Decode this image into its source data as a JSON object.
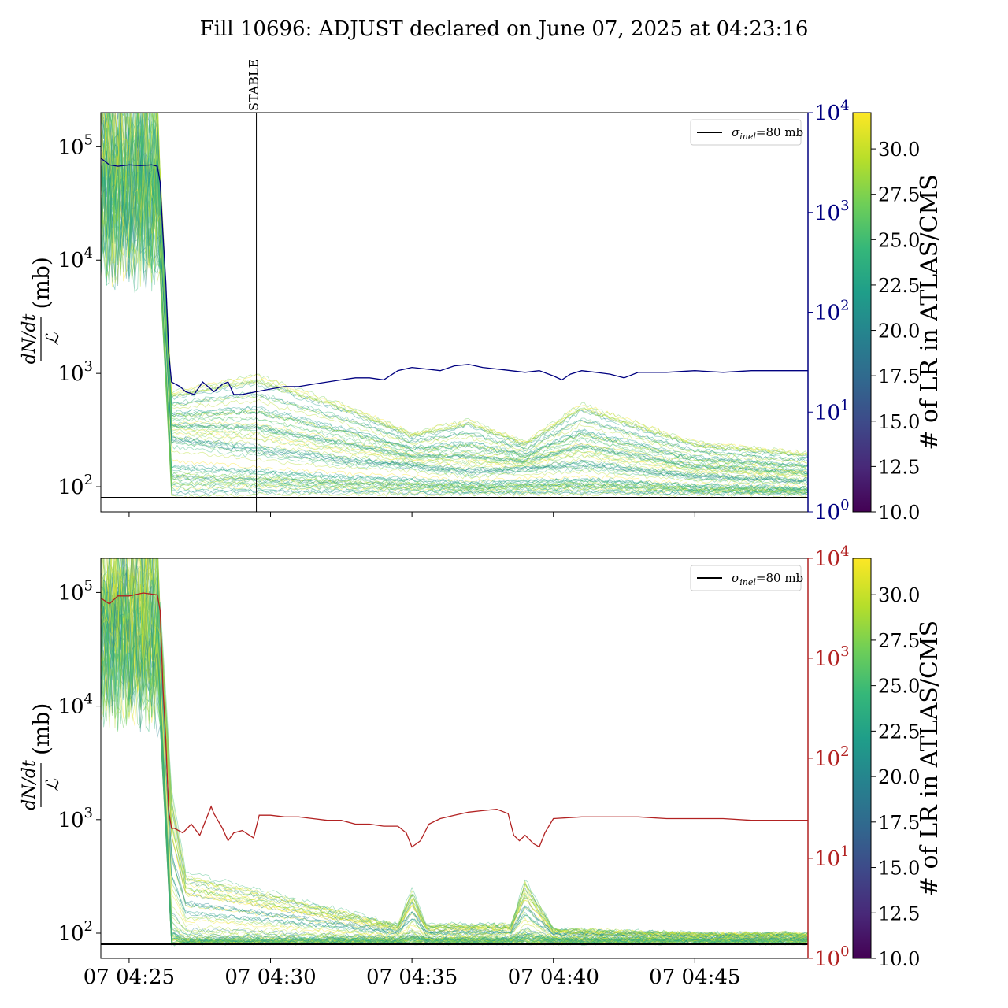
{
  "title": "Fill 10696: ADJUST declared on June 07, 2025 at 04:23:16",
  "colors": {
    "top_secondary": "#000080",
    "bottom_secondary": "#b22222",
    "reference_line": "#000000",
    "colormap": [
      "#440154",
      "#482878",
      "#3e4989",
      "#31688e",
      "#26828e",
      "#1f9e89",
      "#35b779",
      "#6ece58",
      "#b5de2b",
      "#fde725"
    ]
  },
  "chart_data": [
    {
      "type": "line",
      "panel": "top",
      "ylabel": "(mb)",
      "ylabel_fraction": {
        "numerator": "dN/dt",
        "denominator": "ℒ"
      },
      "yscale": "log",
      "ylim": [
        60,
        200000
      ],
      "y_ticks": [
        {
          "value": 100,
          "label": "10",
          "exp": "2"
        },
        {
          "value": 1000,
          "label": "10",
          "exp": "3"
        },
        {
          "value": 10000,
          "label": "10",
          "exp": "4"
        },
        {
          "value": 100000,
          "label": "10",
          "exp": "5"
        }
      ],
      "xlim_minutes": [
        4.0,
        29.0
      ],
      "x_ticks": [
        {
          "value": 5,
          "label": "07 04:25"
        },
        {
          "value": 10,
          "label": "07 04:30"
        },
        {
          "value": 15,
          "label": "07 04:35"
        },
        {
          "value": 20,
          "label": "07 04:40"
        },
        {
          "value": 25,
          "label": "07 04:45"
        }
      ],
      "x_tick_labels_visible": false,
      "secondary_axis": {
        "yscale": "log",
        "ylim": [
          1,
          10000
        ],
        "ticks": [
          {
            "value": 1,
            "label": "10",
            "exp": "0"
          },
          {
            "value": 10,
            "label": "10",
            "exp": "1"
          },
          {
            "value": 100,
            "label": "10",
            "exp": "2"
          },
          {
            "value": 1000,
            "label": "10",
            "exp": "3"
          },
          {
            "value": 10000,
            "label": "10",
            "exp": "4"
          }
        ],
        "series": {
          "color": "#000080",
          "x": [
            4.0,
            4.3,
            4.6,
            5.0,
            5.4,
            5.8,
            6.0,
            6.1,
            6.2,
            6.3,
            6.4,
            6.5,
            6.8,
            7.0,
            7.3,
            7.6,
            8.0,
            8.3,
            8.5,
            8.7,
            9.0,
            9.5,
            10.0,
            10.5,
            11.0,
            11.5,
            12.0,
            12.5,
            13.0,
            13.5,
            14.0,
            14.5,
            15.0,
            15.5,
            16.0,
            16.5,
            17.0,
            17.5,
            18.0,
            18.5,
            19.0,
            19.5,
            20.0,
            20.3,
            20.6,
            21.0,
            21.5,
            22.0,
            22.5,
            23.0,
            24.0,
            25.0,
            26.0,
            27.0,
            28.0,
            29.0
          ],
          "values": [
            3500,
            3000,
            2900,
            3000,
            2950,
            3000,
            2900,
            2000,
            600,
            200,
            40,
            20,
            18,
            16,
            15,
            20,
            16,
            19,
            20,
            15,
            15,
            16,
            17,
            18,
            18,
            19,
            20,
            21,
            22,
            22,
            21,
            26,
            28,
            27,
            26,
            29,
            30,
            28,
            27,
            26,
            25,
            26,
            23,
            21,
            24,
            26,
            25,
            24,
            22,
            25,
            25,
            26,
            25,
            26,
            26,
            26
          ]
        }
      },
      "reference_line": {
        "value": 80,
        "label_symbol": "σ",
        "label_sub": "inel",
        "label_rest": "=80 mb"
      },
      "vline": {
        "x": 9.5,
        "label": "STABLE"
      },
      "legend_position": "upper right",
      "colorbar": {
        "label": "# of LR in ATLAS/CMS",
        "range": [
          10,
          32
        ],
        "ticks": [
          "10.0",
          "12.5",
          "15.0",
          "17.5",
          "20.0",
          "22.5",
          "25.0",
          "27.5",
          "30.0"
        ]
      },
      "bundle_summary": {
        "x": [
          4.0,
          6.0,
          6.5,
          9.5,
          13.0,
          15.0,
          17.0,
          19.0,
          21.0,
          25.0,
          29.0
        ],
        "upper": [
          200000,
          200000,
          700,
          1000,
          500,
          300,
          400,
          250,
          550,
          250,
          200
        ],
        "median": [
          40000,
          40000,
          250,
          200,
          160,
          150,
          130,
          140,
          150,
          120,
          110
        ],
        "lower": [
          20000,
          20000,
          80,
          85,
          85,
          85,
          85,
          85,
          85,
          85,
          85
        ]
      }
    },
    {
      "type": "line",
      "panel": "bottom",
      "ylabel": "(mb)",
      "ylabel_fraction": {
        "numerator": "dN/dt",
        "denominator": "ℒ"
      },
      "yscale": "log",
      "ylim": [
        60,
        200000
      ],
      "y_ticks": [
        {
          "value": 100,
          "label": "10",
          "exp": "2"
        },
        {
          "value": 1000,
          "label": "10",
          "exp": "3"
        },
        {
          "value": 10000,
          "label": "10",
          "exp": "4"
        },
        {
          "value": 100000,
          "label": "10",
          "exp": "5"
        }
      ],
      "xlim_minutes": [
        4.0,
        29.0
      ],
      "x_ticks": [
        {
          "value": 5,
          "label": "07 04:25"
        },
        {
          "value": 10,
          "label": "07 04:30"
        },
        {
          "value": 15,
          "label": "07 04:35"
        },
        {
          "value": 20,
          "label": "07 04:40"
        },
        {
          "value": 25,
          "label": "07 04:45"
        }
      ],
      "x_tick_labels_visible": true,
      "secondary_axis": {
        "yscale": "log",
        "ylim": [
          1,
          10000
        ],
        "ticks": [
          {
            "value": 1,
            "label": "10",
            "exp": "0"
          },
          {
            "value": 10,
            "label": "10",
            "exp": "1"
          },
          {
            "value": 100,
            "label": "10",
            "exp": "2"
          },
          {
            "value": 1000,
            "label": "10",
            "exp": "3"
          },
          {
            "value": 10000,
            "label": "10",
            "exp": "4"
          }
        ],
        "series": {
          "color": "#b22222",
          "x": [
            4.0,
            4.3,
            4.6,
            5.0,
            5.5,
            6.0,
            6.1,
            6.2,
            6.3,
            6.4,
            6.5,
            6.6,
            6.9,
            7.2,
            7.5,
            7.9,
            8.0,
            8.3,
            8.5,
            8.7,
            9.0,
            9.4,
            9.6,
            10.0,
            10.5,
            11.0,
            11.5,
            12.0,
            12.5,
            13.0,
            13.5,
            14.0,
            14.5,
            14.8,
            15.0,
            15.3,
            15.6,
            16.0,
            16.5,
            17.0,
            17.5,
            18.0,
            18.4,
            18.6,
            18.8,
            19.0,
            19.3,
            19.5,
            19.7,
            20.0,
            21.0,
            22.0,
            23.0,
            24.0,
            25.0,
            26.0,
            27.0,
            28.0,
            29.0
          ],
          "values": [
            4000,
            3500,
            4200,
            4200,
            4500,
            4300,
            3000,
            500,
            150,
            30,
            20,
            20,
            18,
            22,
            17,
            33,
            28,
            20,
            15,
            18,
            19,
            16,
            27,
            27,
            26,
            26,
            25,
            24,
            24,
            22,
            22,
            21,
            21,
            18,
            13,
            15,
            22,
            25,
            27,
            29,
            30,
            31,
            28,
            17,
            15,
            17,
            14,
            13,
            18,
            25,
            26,
            26,
            26,
            25,
            25,
            25,
            24,
            24,
            24
          ]
        }
      },
      "reference_line": {
        "value": 80,
        "label_symbol": "σ",
        "label_sub": "inel",
        "label_rest": "=80 mb"
      },
      "legend_position": "upper right",
      "colorbar": {
        "label": "# of LR in ATLAS/CMS",
        "range": [
          10,
          32
        ],
        "ticks": [
          "10.0",
          "12.5",
          "15.0",
          "17.5",
          "20.0",
          "22.5",
          "25.0",
          "27.5",
          "30.0"
        ]
      },
      "bundle_summary": {
        "x": [
          4.0,
          6.0,
          6.5,
          7.0,
          9.5,
          14.5,
          15.0,
          15.5,
          18.5,
          19.0,
          20.0,
          25.0,
          29.0
        ],
        "upper": [
          200000,
          200000,
          2000,
          350,
          250,
          120,
          250,
          120,
          120,
          300,
          110,
          100,
          100
        ],
        "median": [
          40000,
          40000,
          100,
          88,
          88,
          88,
          92,
          88,
          88,
          95,
          88,
          88,
          88
        ],
        "lower": [
          20000,
          20000,
          80,
          82,
          82,
          82,
          82,
          82,
          82,
          82,
          82,
          82,
          82
        ]
      }
    }
  ]
}
